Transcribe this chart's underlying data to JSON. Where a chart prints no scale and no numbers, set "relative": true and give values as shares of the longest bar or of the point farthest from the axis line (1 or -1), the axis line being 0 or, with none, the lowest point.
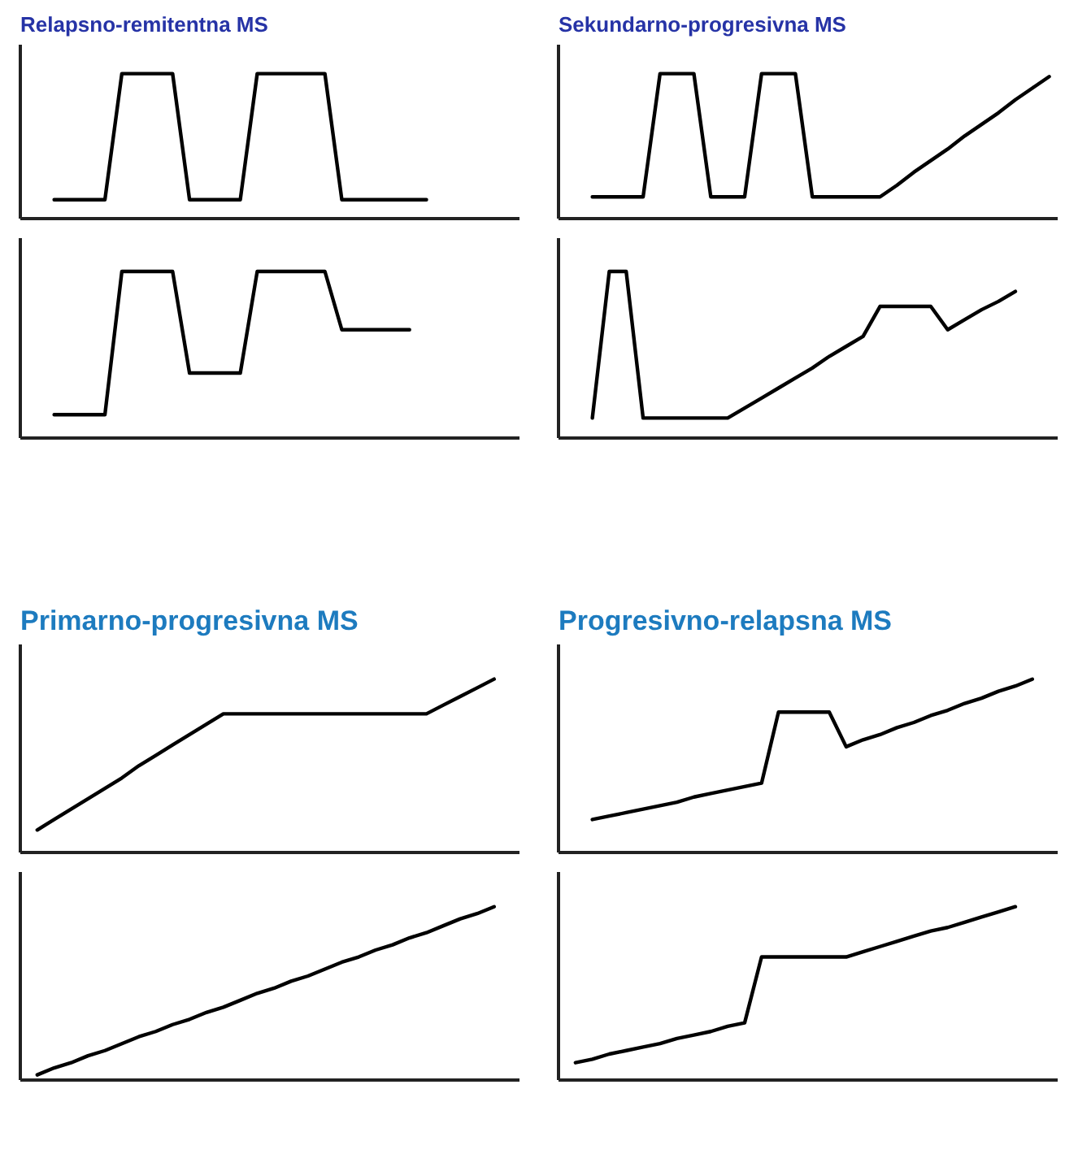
{
  "chart_data": [
    {
      "type": "line",
      "title": "Relapsno-remitentna MS",
      "relative": true,
      "color": "#000000",
      "categories": [
        null,
        null,
        null,
        null,
        null,
        null,
        null,
        null,
        null,
        null,
        null,
        null,
        null,
        null,
        null,
        null,
        null,
        null,
        null,
        null,
        null,
        null,
        null,
        null,
        null,
        null,
        null,
        null,
        null,
        null
      ],
      "values": [
        null,
        null,
        0.13,
        0.13,
        0.13,
        0.13,
        1,
        1,
        1,
        1,
        0.13,
        0.13,
        0.13,
        0.13,
        1,
        1,
        1,
        1,
        1,
        0.13,
        0.13,
        0.13,
        0.13,
        0.13,
        0.13,
        null,
        null,
        null,
        null,
        null
      ]
    },
    {
      "type": "line",
      "title": "Sekundarno-progresivna MS",
      "relative": true,
      "color": "#000000",
      "categories": [
        null,
        null,
        null,
        null,
        null,
        null,
        null,
        null,
        null,
        null,
        null,
        null,
        null,
        null,
        null,
        null,
        null,
        null,
        null,
        null,
        null,
        null,
        null,
        null,
        null,
        null,
        null,
        null,
        null,
        null
      ],
      "values": [
        null,
        null,
        0.15,
        0.15,
        0.15,
        0.15,
        1,
        1,
        1,
        0.15,
        0.15,
        0.15,
        1,
        1,
        1,
        0.15,
        0.15,
        0.15,
        0.15,
        0.15,
        0.23,
        0.32,
        0.4,
        0.48,
        0.57,
        0.65,
        0.73,
        0.82,
        0.9,
        0.98
      ]
    },
    {
      "type": "line",
      "relative": true,
      "color": "#000000",
      "categories": [
        null,
        null,
        null,
        null,
        null,
        null,
        null,
        null,
        null,
        null,
        null,
        null,
        null,
        null,
        null,
        null,
        null,
        null,
        null,
        null,
        null,
        null,
        null,
        null,
        null,
        null,
        null,
        null,
        null,
        null
      ],
      "values": [
        null,
        null,
        0.14,
        0.14,
        0.14,
        0.14,
        1,
        1,
        1,
        1,
        0.39,
        0.39,
        0.39,
        0.39,
        1,
        1,
        1,
        1,
        1,
        0.65,
        0.65,
        0.65,
        0.65,
        0.65,
        null,
        null,
        null,
        null,
        null,
        null
      ]
    },
    {
      "type": "line",
      "relative": true,
      "color": "#000000",
      "categories": [
        null,
        null,
        null,
        null,
        null,
        null,
        null,
        null,
        null,
        null,
        null,
        null,
        null,
        null,
        null,
        null,
        null,
        null,
        null,
        null,
        null,
        null,
        null,
        null,
        null,
        null,
        null,
        null,
        null,
        null
      ],
      "values": [
        null,
        null,
        0.12,
        1,
        1,
        0.12,
        0.12,
        0.12,
        0.12,
        0.12,
        0.12,
        0.18,
        0.24,
        0.3,
        0.36,
        0.42,
        0.49,
        0.55,
        0.61,
        0.79,
        0.79,
        0.79,
        0.79,
        0.65,
        0.71,
        0.77,
        0.82,
        0.88,
        null,
        null
      ]
    },
    {
      "type": "line",
      "title": "Primarno-progresivna MS",
      "relative": true,
      "color": "#000000",
      "categories": [
        null,
        null,
        null,
        null,
        null,
        null,
        null,
        null,
        null,
        null,
        null,
        null,
        null,
        null,
        null,
        null,
        null,
        null,
        null,
        null,
        null,
        null,
        null,
        null,
        null,
        null,
        null,
        null,
        null,
        null
      ],
      "values": [
        null,
        0.13,
        0.19,
        0.25,
        0.31,
        0.37,
        0.43,
        0.5,
        0.56,
        0.62,
        0.68,
        0.74,
        0.8,
        0.8,
        0.8,
        0.8,
        0.8,
        0.8,
        0.8,
        0.8,
        0.8,
        0.8,
        0.8,
        0.8,
        0.8,
        0.85,
        0.9,
        0.95,
        1,
        null
      ]
    },
    {
      "type": "line",
      "title": "Progresivno-relapsna MS",
      "relative": true,
      "color": "#000000",
      "categories": [
        null,
        null,
        null,
        null,
        null,
        null,
        null,
        null,
        null,
        null,
        null,
        null,
        null,
        null,
        null,
        null,
        null,
        null,
        null,
        null,
        null,
        null,
        null,
        null,
        null,
        null,
        null,
        null,
        null,
        null
      ],
      "values": [
        null,
        null,
        0.19,
        0.21,
        0.23,
        0.25,
        0.27,
        0.29,
        0.32,
        0.34,
        0.36,
        0.38,
        0.4,
        0.81,
        0.81,
        0.81,
        0.81,
        0.61,
        0.65,
        0.68,
        0.72,
        0.75,
        0.79,
        0.82,
        0.86,
        0.89,
        0.93,
        0.96,
        1,
        null
      ]
    },
    {
      "type": "line",
      "relative": true,
      "color": "#000000",
      "categories": [
        null,
        null,
        null,
        null,
        null,
        null,
        null,
        null,
        null,
        null,
        null,
        null,
        null,
        null,
        null,
        null,
        null,
        null,
        null,
        null,
        null,
        null,
        null,
        null,
        null,
        null,
        null,
        null,
        null,
        null
      ],
      "values": [
        null,
        0.03,
        0.07,
        0.1,
        0.14,
        0.17,
        0.21,
        0.25,
        0.28,
        0.32,
        0.35,
        0.39,
        0.42,
        0.46,
        0.5,
        0.53,
        0.57,
        0.6,
        0.64,
        0.68,
        0.71,
        0.75,
        0.78,
        0.82,
        0.85,
        0.89,
        0.93,
        0.96,
        1,
        null
      ]
    },
    {
      "type": "line",
      "relative": true,
      "color": "#000000",
      "categories": [
        null,
        null,
        null,
        null,
        null,
        null,
        null,
        null,
        null,
        null,
        null,
        null,
        null,
        null,
        null,
        null,
        null,
        null,
        null,
        null,
        null,
        null,
        null,
        null,
        null,
        null,
        null,
        null,
        null,
        null
      ],
      "values": [
        null,
        0.1,
        0.12,
        0.15,
        0.17,
        0.19,
        0.21,
        0.24,
        0.26,
        0.28,
        0.31,
        0.33,
        0.71,
        0.71,
        0.71,
        0.71,
        0.71,
        0.71,
        0.74,
        0.77,
        0.8,
        0.83,
        0.86,
        0.88,
        0.91,
        0.94,
        0.97,
        1,
        null,
        null
      ]
    }
  ]
}
